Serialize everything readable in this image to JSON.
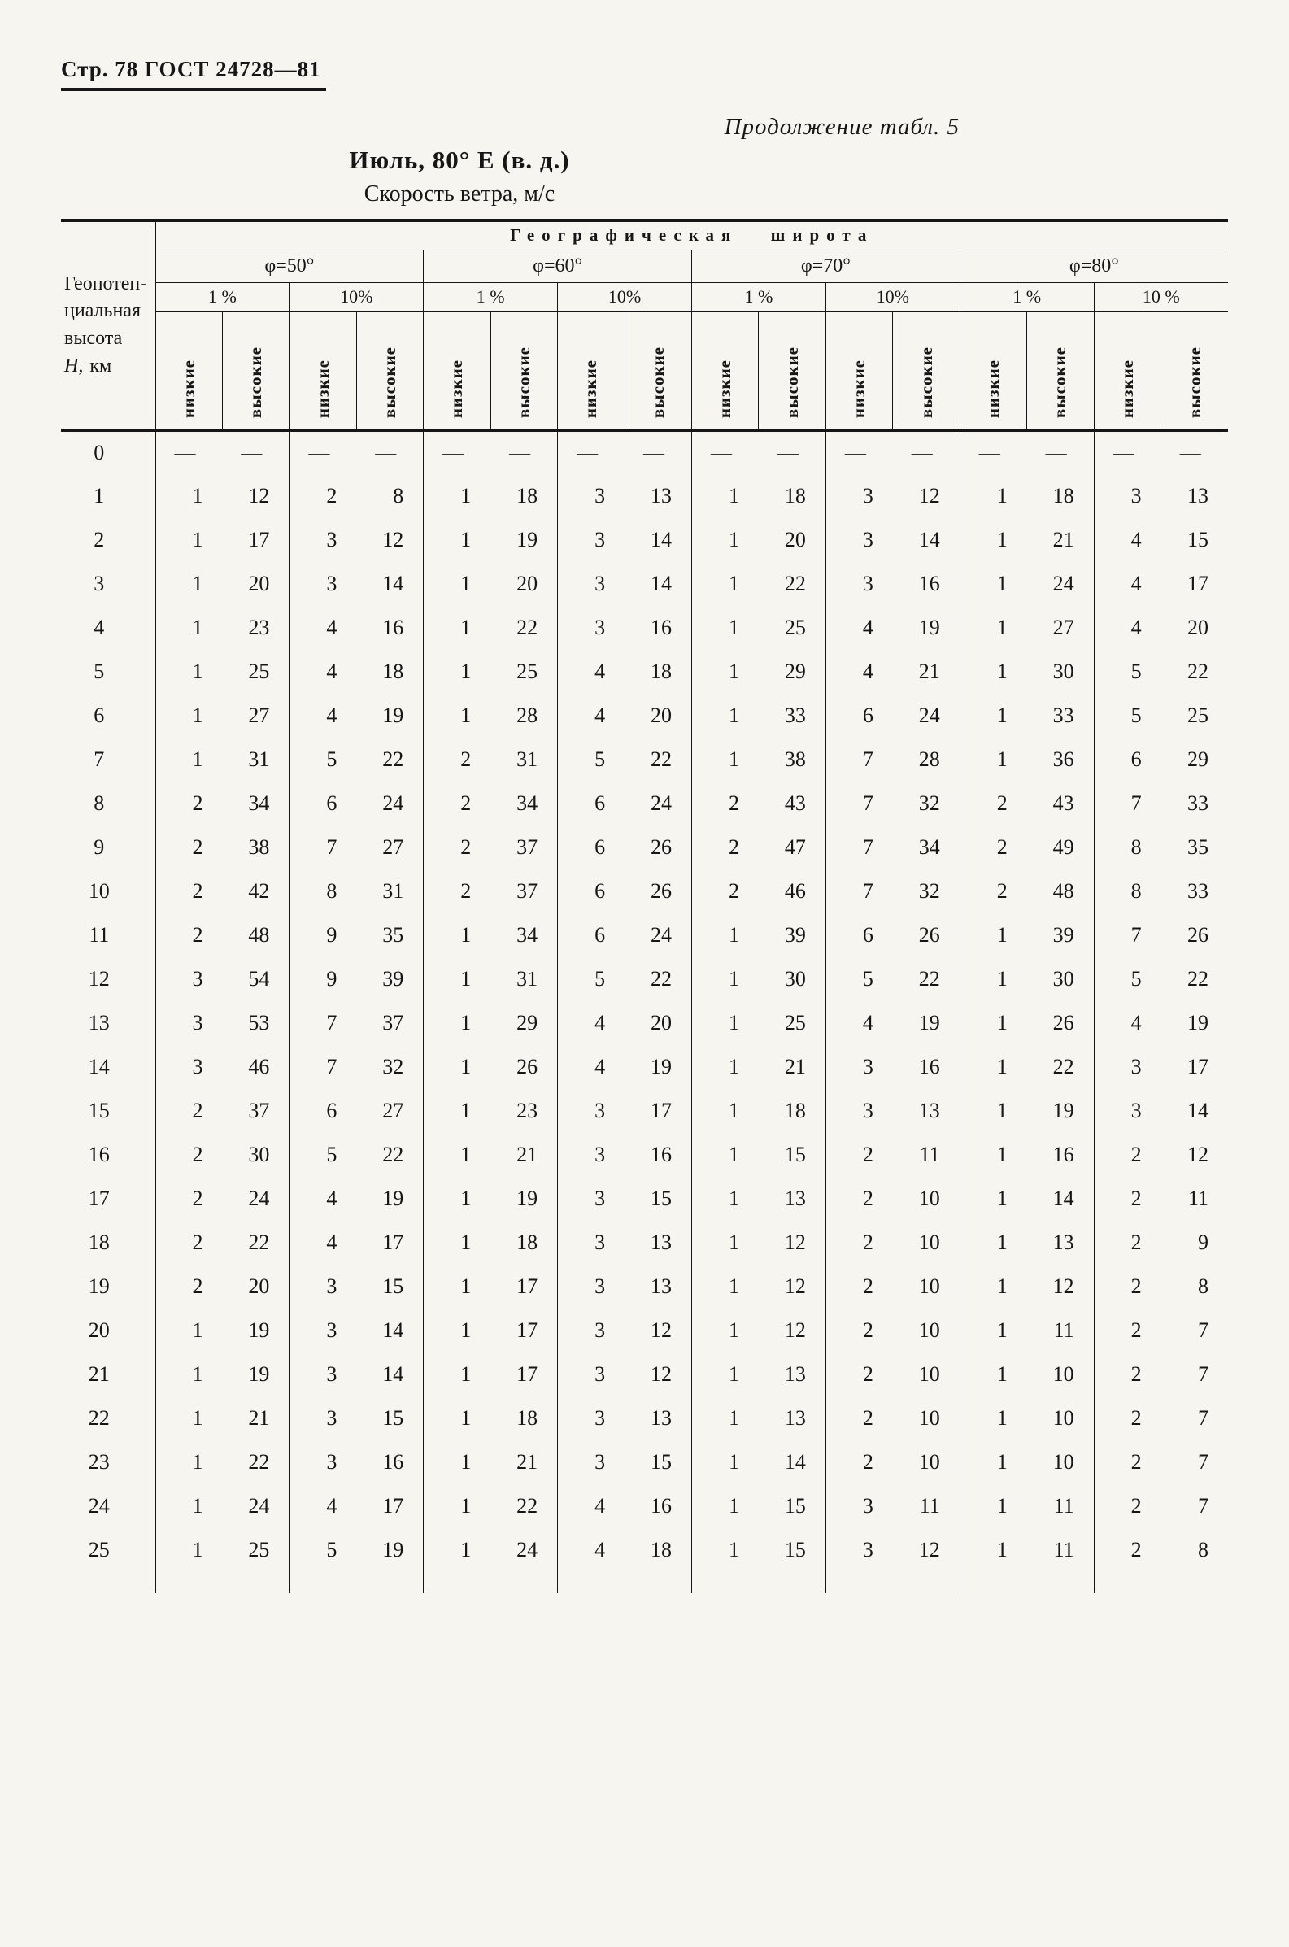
{
  "page": {
    "header_left": "Стр. 78 ГОСТ 24728—81",
    "continuation": "Продолжение табл. 5",
    "title": "Июль, 80° Е (в. д.)",
    "subtitle": "Скорость ветра, м/с"
  },
  "table": {
    "latitude_header": "Географическая широта",
    "stub": [
      "Геопотен-",
      "циальная",
      "высота"
    ],
    "stub_h": "Н,",
    "stub_unit": "км",
    "phi": [
      "φ=50°",
      "φ=60°",
      "φ=70°",
      "φ=80°"
    ],
    "percents": [
      "1 %",
      "10%",
      "1 %",
      "10%",
      "1 %",
      "10%",
      "1 %",
      "10 %"
    ],
    "col_labels": [
      "низкие",
      "высокие",
      "низкие",
      "высокие",
      "низкие",
      "высокие",
      "низкие",
      "высокие",
      "низкие",
      "высокие",
      "низкие",
      "высокие",
      "низкие",
      "высокие",
      "низкие",
      "высокие"
    ],
    "rows": [
      {
        "h": "0",
        "v": [
          "—",
          "—",
          "—",
          "—",
          "—",
          "—",
          "—",
          "—",
          "—",
          "—",
          "—",
          "—",
          "—",
          "—",
          "—",
          "—"
        ]
      },
      {
        "h": "1",
        "v": [
          "1",
          "12",
          "2",
          "8",
          "1",
          "18",
          "3",
          "13",
          "1",
          "18",
          "3",
          "12",
          "1",
          "18",
          "3",
          "13"
        ]
      },
      {
        "h": "2",
        "v": [
          "1",
          "17",
          "3",
          "12",
          "1",
          "19",
          "3",
          "14",
          "1",
          "20",
          "3",
          "14",
          "1",
          "21",
          "4",
          "15"
        ]
      },
      {
        "h": "3",
        "v": [
          "1",
          "20",
          "3",
          "14",
          "1",
          "20",
          "3",
          "14",
          "1",
          "22",
          "3",
          "16",
          "1",
          "24",
          "4",
          "17"
        ]
      },
      {
        "h": "4",
        "v": [
          "1",
          "23",
          "4",
          "16",
          "1",
          "22",
          "3",
          "16",
          "1",
          "25",
          "4",
          "19",
          "1",
          "27",
          "4",
          "20"
        ]
      },
      {
        "h": "5",
        "v": [
          "1",
          "25",
          "4",
          "18",
          "1",
          "25",
          "4",
          "18",
          "1",
          "29",
          "4",
          "21",
          "1",
          "30",
          "5",
          "22"
        ]
      },
      {
        "h": "6",
        "v": [
          "1",
          "27",
          "4",
          "19",
          "1",
          "28",
          "4",
          "20",
          "1",
          "33",
          "6",
          "24",
          "1",
          "33",
          "5",
          "25"
        ]
      },
      {
        "h": "7",
        "v": [
          "1",
          "31",
          "5",
          "22",
          "2",
          "31",
          "5",
          "22",
          "1",
          "38",
          "7",
          "28",
          "1",
          "36",
          "6",
          "29"
        ]
      },
      {
        "h": "8",
        "v": [
          "2",
          "34",
          "6",
          "24",
          "2",
          "34",
          "6",
          "24",
          "2",
          "43",
          "7",
          "32",
          "2",
          "43",
          "7",
          "33"
        ]
      },
      {
        "h": "9",
        "v": [
          "2",
          "38",
          "7",
          "27",
          "2",
          "37",
          "6",
          "26",
          "2",
          "47",
          "7",
          "34",
          "2",
          "49",
          "8",
          "35"
        ]
      },
      {
        "h": "10",
        "v": [
          "2",
          "42",
          "8",
          "31",
          "2",
          "37",
          "6",
          "26",
          "2",
          "46",
          "7",
          "32",
          "2",
          "48",
          "8",
          "33"
        ]
      },
      {
        "h": "11",
        "v": [
          "2",
          "48",
          "9",
          "35",
          "1",
          "34",
          "6",
          "24",
          "1",
          "39",
          "6",
          "26",
          "1",
          "39",
          "7",
          "26"
        ]
      },
      {
        "h": "12",
        "v": [
          "3",
          "54",
          "9",
          "39",
          "1",
          "31",
          "5",
          "22",
          "1",
          "30",
          "5",
          "22",
          "1",
          "30",
          "5",
          "22"
        ]
      },
      {
        "h": "13",
        "v": [
          "3",
          "53",
          "7",
          "37",
          "1",
          "29",
          "4",
          "20",
          "1",
          "25",
          "4",
          "19",
          "1",
          "26",
          "4",
          "19"
        ]
      },
      {
        "h": "14",
        "v": [
          "3",
          "46",
          "7",
          "32",
          "1",
          "26",
          "4",
          "19",
          "1",
          "21",
          "3",
          "16",
          "1",
          "22",
          "3",
          "17"
        ]
      },
      {
        "h": "15",
        "v": [
          "2",
          "37",
          "6",
          "27",
          "1",
          "23",
          "3",
          "17",
          "1",
          "18",
          "3",
          "13",
          "1",
          "19",
          "3",
          "14"
        ]
      },
      {
        "h": "16",
        "v": [
          "2",
          "30",
          "5",
          "22",
          "1",
          "21",
          "3",
          "16",
          "1",
          "15",
          "2",
          "11",
          "1",
          "16",
          "2",
          "12"
        ]
      },
      {
        "h": "17",
        "v": [
          "2",
          "24",
          "4",
          "19",
          "1",
          "19",
          "3",
          "15",
          "1",
          "13",
          "2",
          "10",
          "1",
          "14",
          "2",
          "11"
        ]
      },
      {
        "h": "18",
        "v": [
          "2",
          "22",
          "4",
          "17",
          "1",
          "18",
          "3",
          "13",
          "1",
          "12",
          "2",
          "10",
          "1",
          "13",
          "2",
          "9"
        ]
      },
      {
        "h": "19",
        "v": [
          "2",
          "20",
          "3",
          "15",
          "1",
          "17",
          "3",
          "13",
          "1",
          "12",
          "2",
          "10",
          "1",
          "12",
          "2",
          "8"
        ]
      },
      {
        "h": "20",
        "v": [
          "1",
          "19",
          "3",
          "14",
          "1",
          "17",
          "3",
          "12",
          "1",
          "12",
          "2",
          "10",
          "1",
          "11",
          "2",
          "7"
        ]
      },
      {
        "h": "21",
        "v": [
          "1",
          "19",
          "3",
          "14",
          "1",
          "17",
          "3",
          "12",
          "1",
          "13",
          "2",
          "10",
          "1",
          "10",
          "2",
          "7"
        ]
      },
      {
        "h": "22",
        "v": [
          "1",
          "21",
          "3",
          "15",
          "1",
          "18",
          "3",
          "13",
          "1",
          "13",
          "2",
          "10",
          "1",
          "10",
          "2",
          "7"
        ]
      },
      {
        "h": "23",
        "v": [
          "1",
          "22",
          "3",
          "16",
          "1",
          "21",
          "3",
          "15",
          "1",
          "14",
          "2",
          "10",
          "1",
          "10",
          "2",
          "7"
        ]
      },
      {
        "h": "24",
        "v": [
          "1",
          "24",
          "4",
          "17",
          "1",
          "22",
          "4",
          "16",
          "1",
          "15",
          "3",
          "11",
          "1",
          "11",
          "2",
          "7"
        ]
      },
      {
        "h": "25",
        "v": [
          "1",
          "25",
          "5",
          "19",
          "1",
          "24",
          "4",
          "18",
          "1",
          "15",
          "3",
          "12",
          "1",
          "11",
          "2",
          "8"
        ]
      }
    ]
  }
}
